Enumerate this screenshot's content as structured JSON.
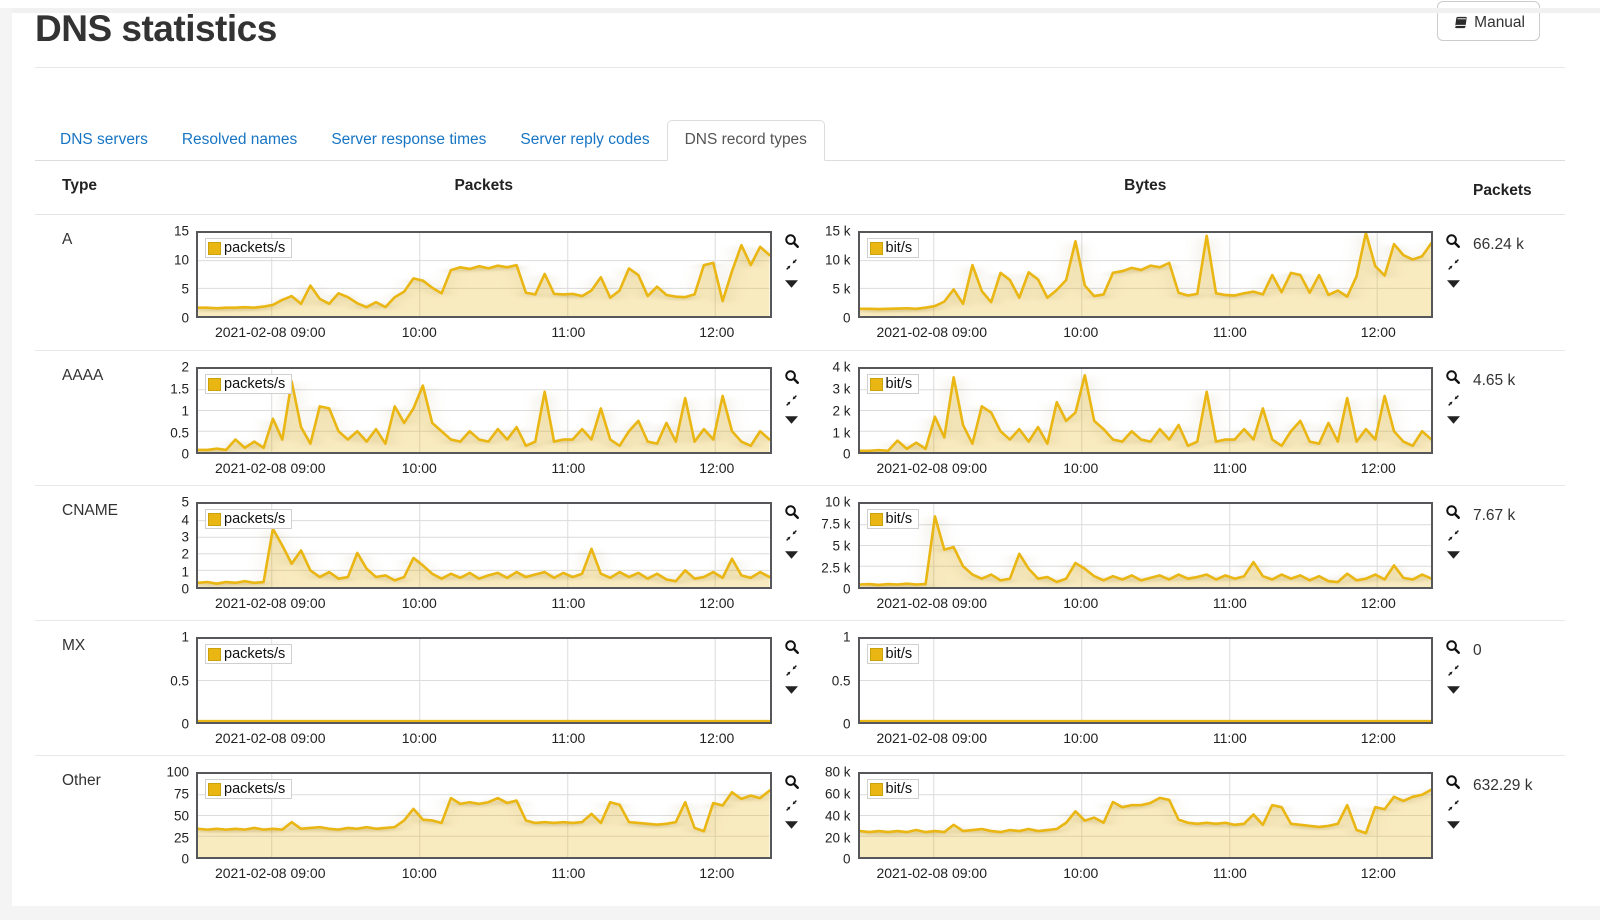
{
  "page": {
    "title": "DNS statistics",
    "manual_button": "Manual"
  },
  "icons": {
    "manual": "book-icon",
    "zoom": "magnifier-icon",
    "collapse": "collapse-arrows-icon",
    "dropdown": "caret-down-icon"
  },
  "colors": {
    "line": "#e9b613",
    "fill": "rgba(233,181,21,0.27)",
    "grid": "#dcdcdc",
    "frame": "#55575b",
    "link": "#1775c4",
    "active_tab_text": "#555555"
  },
  "tabs": [
    {
      "label": "DNS servers",
      "active": false
    },
    {
      "label": "Resolved names",
      "active": false
    },
    {
      "label": "Server response times",
      "active": false
    },
    {
      "label": "Server reply codes",
      "active": false
    },
    {
      "label": "DNS record types",
      "active": true
    }
  ],
  "table_headers": {
    "type": "Type",
    "packets": "Packets",
    "bytes": "Bytes",
    "packets_total": "Packets"
  },
  "x_axis": {
    "fractions": [
      0.129,
      0.388,
      0.647,
      0.905
    ],
    "labels": [
      "2021-02-08 09:00",
      "10:00",
      "11:00",
      "12:00"
    ]
  },
  "rows": [
    {
      "type": "A",
      "total": "66.24 k",
      "packets": {
        "type": "area",
        "legend": "packets/s",
        "ymax": 15,
        "yticks": [
          {
            "v": 15,
            "label": "15"
          },
          {
            "v": 10,
            "label": "10"
          },
          {
            "v": 5,
            "label": "5"
          },
          {
            "v": 0,
            "label": "0"
          }
        ],
        "values": [
          1.5,
          1.5,
          1.4,
          1.5,
          1.5,
          1.6,
          1.5,
          1.7,
          2.0,
          2.9,
          3.6,
          2.2,
          5.5,
          3.1,
          2.2,
          4.1,
          3.4,
          2.3,
          1.6,
          2.5,
          1.6,
          3.4,
          4.4,
          6.8,
          6.4,
          5.1,
          4.1,
          8.3,
          8.8,
          8.5,
          9.0,
          8.6,
          9.1,
          8.8,
          9.2,
          4.2,
          3.9,
          7.6,
          4.0,
          3.9,
          4.0,
          3.6,
          4.6,
          7.0,
          3.3,
          4.6,
          8.6,
          7.4,
          3.6,
          5.3,
          3.8,
          3.5,
          3.4,
          3.9,
          9.2,
          9.6,
          2.7,
          8.1,
          12.8,
          9.2,
          12.5,
          11.0
        ]
      },
      "bytes": {
        "type": "area",
        "legend": "bit/s",
        "ymax": 15000,
        "yticks": [
          {
            "v": 15000,
            "label": "15 k"
          },
          {
            "v": 10000,
            "label": "10 k"
          },
          {
            "v": 5000,
            "label": "5 k"
          },
          {
            "v": 0,
            "label": "0"
          }
        ],
        "values": [
          1300,
          1300,
          1250,
          1300,
          1350,
          1400,
          1300,
          1500,
          1800,
          2600,
          4800,
          2200,
          9200,
          4500,
          2500,
          7800,
          6500,
          3300,
          7900,
          6600,
          3300,
          4700,
          6500,
          13500,
          5500,
          3600,
          3900,
          7800,
          8100,
          8700,
          8300,
          9100,
          8800,
          9600,
          4200,
          3700,
          4000,
          14500,
          4100,
          3800,
          3700,
          4100,
          4400,
          3900,
          7400,
          4300,
          7800,
          7400,
          4200,
          7400,
          3800,
          4600,
          3500,
          7200,
          15000,
          9000,
          7300,
          13000,
          11000,
          10200,
          10800,
          13200
        ]
      }
    },
    {
      "type": "AAAA",
      "total": "4.65 k",
      "packets": {
        "type": "area",
        "legend": "packets/s",
        "ymax": 2,
        "yticks": [
          {
            "v": 2,
            "label": "2"
          },
          {
            "v": 1.5,
            "label": "1.5"
          },
          {
            "v": 1,
            "label": "1"
          },
          {
            "v": 0.5,
            "label": "0.5"
          },
          {
            "v": 0,
            "label": "0"
          }
        ],
        "values": [
          0.05,
          0.05,
          0.08,
          0.05,
          0.3,
          0.1,
          0.25,
          0.1,
          0.8,
          0.3,
          1.7,
          0.6,
          0.2,
          1.1,
          1.05,
          0.5,
          0.3,
          0.5,
          0.25,
          0.55,
          0.2,
          1.1,
          0.7,
          1.05,
          1.6,
          0.7,
          0.5,
          0.3,
          0.25,
          0.5,
          0.3,
          0.25,
          0.55,
          0.3,
          0.6,
          0.15,
          0.25,
          1.45,
          0.25,
          0.3,
          0.3,
          0.55,
          0.3,
          1.05,
          0.3,
          0.15,
          0.5,
          0.75,
          0.25,
          0.2,
          0.7,
          0.25,
          1.3,
          0.25,
          0.55,
          0.3,
          1.35,
          0.5,
          0.25,
          0.15,
          0.5,
          0.3
        ]
      },
      "bytes": {
        "type": "area",
        "legend": "bit/s",
        "ymax": 4000,
        "yticks": [
          {
            "v": 4000,
            "label": "4 k"
          },
          {
            "v": 3000,
            "label": "3 k"
          },
          {
            "v": 2000,
            "label": "2 k"
          },
          {
            "v": 1000,
            "label": "1 k"
          },
          {
            "v": 0,
            "label": "0"
          }
        ],
        "values": [
          60,
          60,
          90,
          60,
          550,
          150,
          450,
          150,
          1700,
          700,
          3600,
          1300,
          400,
          2200,
          1900,
          1000,
          600,
          1100,
          500,
          1200,
          400,
          2400,
          1500,
          1900,
          3700,
          1500,
          1100,
          600,
          500,
          1000,
          600,
          500,
          1100,
          600,
          1300,
          300,
          500,
          2900,
          500,
          600,
          600,
          1100,
          600,
          2100,
          600,
          300,
          1000,
          1500,
          500,
          400,
          1400,
          500,
          2600,
          500,
          1100,
          600,
          2700,
          1000,
          500,
          300,
          1000,
          600
        ]
      }
    },
    {
      "type": "CNAME",
      "total": "7.67 k",
      "packets": {
        "type": "area",
        "legend": "packets/s",
        "ymax": 5,
        "yticks": [
          {
            "v": 5,
            "label": "5"
          },
          {
            "v": 4,
            "label": "4"
          },
          {
            "v": 3,
            "label": "3"
          },
          {
            "v": 2,
            "label": "2"
          },
          {
            "v": 1,
            "label": "1"
          },
          {
            "v": 0,
            "label": "0"
          }
        ],
        "values": [
          0.25,
          0.3,
          0.2,
          0.3,
          0.25,
          0.35,
          0.25,
          0.3,
          3.5,
          2.5,
          1.4,
          2.2,
          1.0,
          0.6,
          0.9,
          0.5,
          0.6,
          2.05,
          1.1,
          0.6,
          0.7,
          0.4,
          0.6,
          1.75,
          1.3,
          0.8,
          0.5,
          0.8,
          0.55,
          0.85,
          0.5,
          0.7,
          0.85,
          0.55,
          0.9,
          0.6,
          0.75,
          0.9,
          0.55,
          0.85,
          0.6,
          0.8,
          2.3,
          0.8,
          0.55,
          0.9,
          0.6,
          0.85,
          0.5,
          0.8,
          0.45,
          0.35,
          1.0,
          0.5,
          0.6,
          0.9,
          0.55,
          1.7,
          0.7,
          0.55,
          0.9,
          0.6
        ]
      },
      "bytes": {
        "type": "area",
        "legend": "bit/s",
        "ymax": 10000,
        "yticks": [
          {
            "v": 10000,
            "label": "10 k"
          },
          {
            "v": 7500,
            "label": "7.5 k"
          },
          {
            "v": 5000,
            "label": "5 k"
          },
          {
            "v": 2500,
            "label": "2.5 k"
          },
          {
            "v": 0,
            "label": "0"
          }
        ],
        "values": [
          300,
          350,
          250,
          350,
          300,
          400,
          300,
          350,
          8500,
          4500,
          4800,
          2500,
          1500,
          1000,
          1500,
          800,
          1000,
          4000,
          2200,
          1000,
          1200,
          600,
          1000,
          2900,
          2200,
          1300,
          800,
          1300,
          900,
          1400,
          800,
          1100,
          1400,
          900,
          1500,
          1000,
          1200,
          1500,
          900,
          1400,
          1000,
          1300,
          3000,
          1300,
          900,
          1500,
          1000,
          1400,
          800,
          1300,
          700,
          600,
          1600,
          800,
          1000,
          1500,
          900,
          2600,
          1100,
          900,
          1500,
          1000
        ]
      }
    },
    {
      "type": "MX",
      "total": "0",
      "packets": {
        "type": "area",
        "legend": "packets/s",
        "ymax": 1,
        "yticks": [
          {
            "v": 1,
            "label": "1"
          },
          {
            "v": 0.5,
            "label": "0.5"
          },
          {
            "v": 0,
            "label": "0"
          }
        ],
        "values": [
          0.01,
          0.01,
          0.01,
          0.01,
          0.01,
          0.01,
          0.01,
          0.01,
          0.01,
          0.01,
          0.01,
          0.01,
          0.01,
          0.01,
          0.01,
          0.01,
          0.01,
          0.01,
          0.01,
          0.01,
          0.01,
          0.01,
          0.01,
          0.01,
          0.01,
          0.01,
          0.01,
          0.01,
          0.01,
          0.01,
          0.01,
          0.01,
          0.01,
          0.01,
          0.01,
          0.01,
          0.01,
          0.01,
          0.01,
          0.01,
          0.01,
          0.01,
          0.01,
          0.01,
          0.01,
          0.01,
          0.01,
          0.01,
          0.01,
          0.01,
          0.01,
          0.01,
          0.01,
          0.01,
          0.01,
          0.01,
          0.01,
          0.01,
          0.01,
          0.01,
          0.01,
          0.01
        ]
      },
      "bytes": {
        "type": "area",
        "legend": "bit/s",
        "ymax": 1,
        "yticks": [
          {
            "v": 1,
            "label": "1"
          },
          {
            "v": 0.5,
            "label": "0.5"
          },
          {
            "v": 0,
            "label": "0"
          }
        ],
        "values": [
          0.01,
          0.01,
          0.01,
          0.01,
          0.01,
          0.01,
          0.01,
          0.01,
          0.01,
          0.01,
          0.01,
          0.01,
          0.01,
          0.01,
          0.01,
          0.01,
          0.01,
          0.01,
          0.01,
          0.01,
          0.01,
          0.01,
          0.01,
          0.01,
          0.01,
          0.01,
          0.01,
          0.01,
          0.01,
          0.01,
          0.01,
          0.01,
          0.01,
          0.01,
          0.01,
          0.01,
          0.01,
          0.01,
          0.01,
          0.01,
          0.01,
          0.01,
          0.01,
          0.01,
          0.01,
          0.01,
          0.01,
          0.01,
          0.01,
          0.01,
          0.01,
          0.01,
          0.01,
          0.01,
          0.01,
          0.01,
          0.01,
          0.01,
          0.01,
          0.01,
          0.01,
          0.01
        ]
      }
    },
    {
      "type": "Other",
      "total": "632.29 k",
      "packets": {
        "type": "area",
        "legend": "packets/s",
        "ymax": 100,
        "yticks": [
          {
            "v": 100,
            "label": "100"
          },
          {
            "v": 75,
            "label": "75"
          },
          {
            "v": 50,
            "label": "50"
          },
          {
            "v": 25,
            "label": "25"
          },
          {
            "v": 0,
            "label": "0"
          }
        ],
        "values": [
          34,
          33,
          34,
          33,
          34,
          33,
          35,
          33,
          34,
          33,
          42,
          34,
          35,
          36,
          34,
          33,
          35,
          34,
          36,
          34,
          35,
          36,
          44,
          58,
          45,
          44,
          41,
          71,
          64,
          66,
          64,
          66,
          71,
          65,
          68,
          44,
          41,
          42,
          41,
          42,
          41,
          42,
          52,
          41,
          66,
          63,
          42,
          41,
          40,
          39,
          40,
          42,
          66,
          35,
          31,
          65,
          62,
          78,
          70,
          74,
          71,
          80
        ]
      },
      "bytes": {
        "type": "area",
        "legend": "bit/s",
        "ymax": 80000,
        "yticks": [
          {
            "v": 80000,
            "label": "80 k"
          },
          {
            "v": 60000,
            "label": "60 k"
          },
          {
            "v": 40000,
            "label": "40 k"
          },
          {
            "v": 20000,
            "label": "20 k"
          },
          {
            "v": 0,
            "label": "0"
          }
        ],
        "values": [
          25000,
          24000,
          25000,
          24000,
          25000,
          24000,
          26000,
          24000,
          25000,
          24000,
          31000,
          25000,
          26000,
          27000,
          25000,
          24000,
          26000,
          25000,
          27000,
          25000,
          26000,
          27000,
          33000,
          44000,
          35000,
          38000,
          33000,
          53000,
          48000,
          50000,
          50000,
          52000,
          57000,
          55000,
          36000,
          33000,
          32000,
          33000,
          32000,
          33000,
          31000,
          32000,
          41000,
          31000,
          50000,
          48000,
          32000,
          31000,
          30000,
          29000,
          30000,
          32000,
          50000,
          26000,
          23000,
          48000,
          46000,
          58000,
          54000,
          58000,
          60000,
          65000
        ]
      }
    }
  ]
}
